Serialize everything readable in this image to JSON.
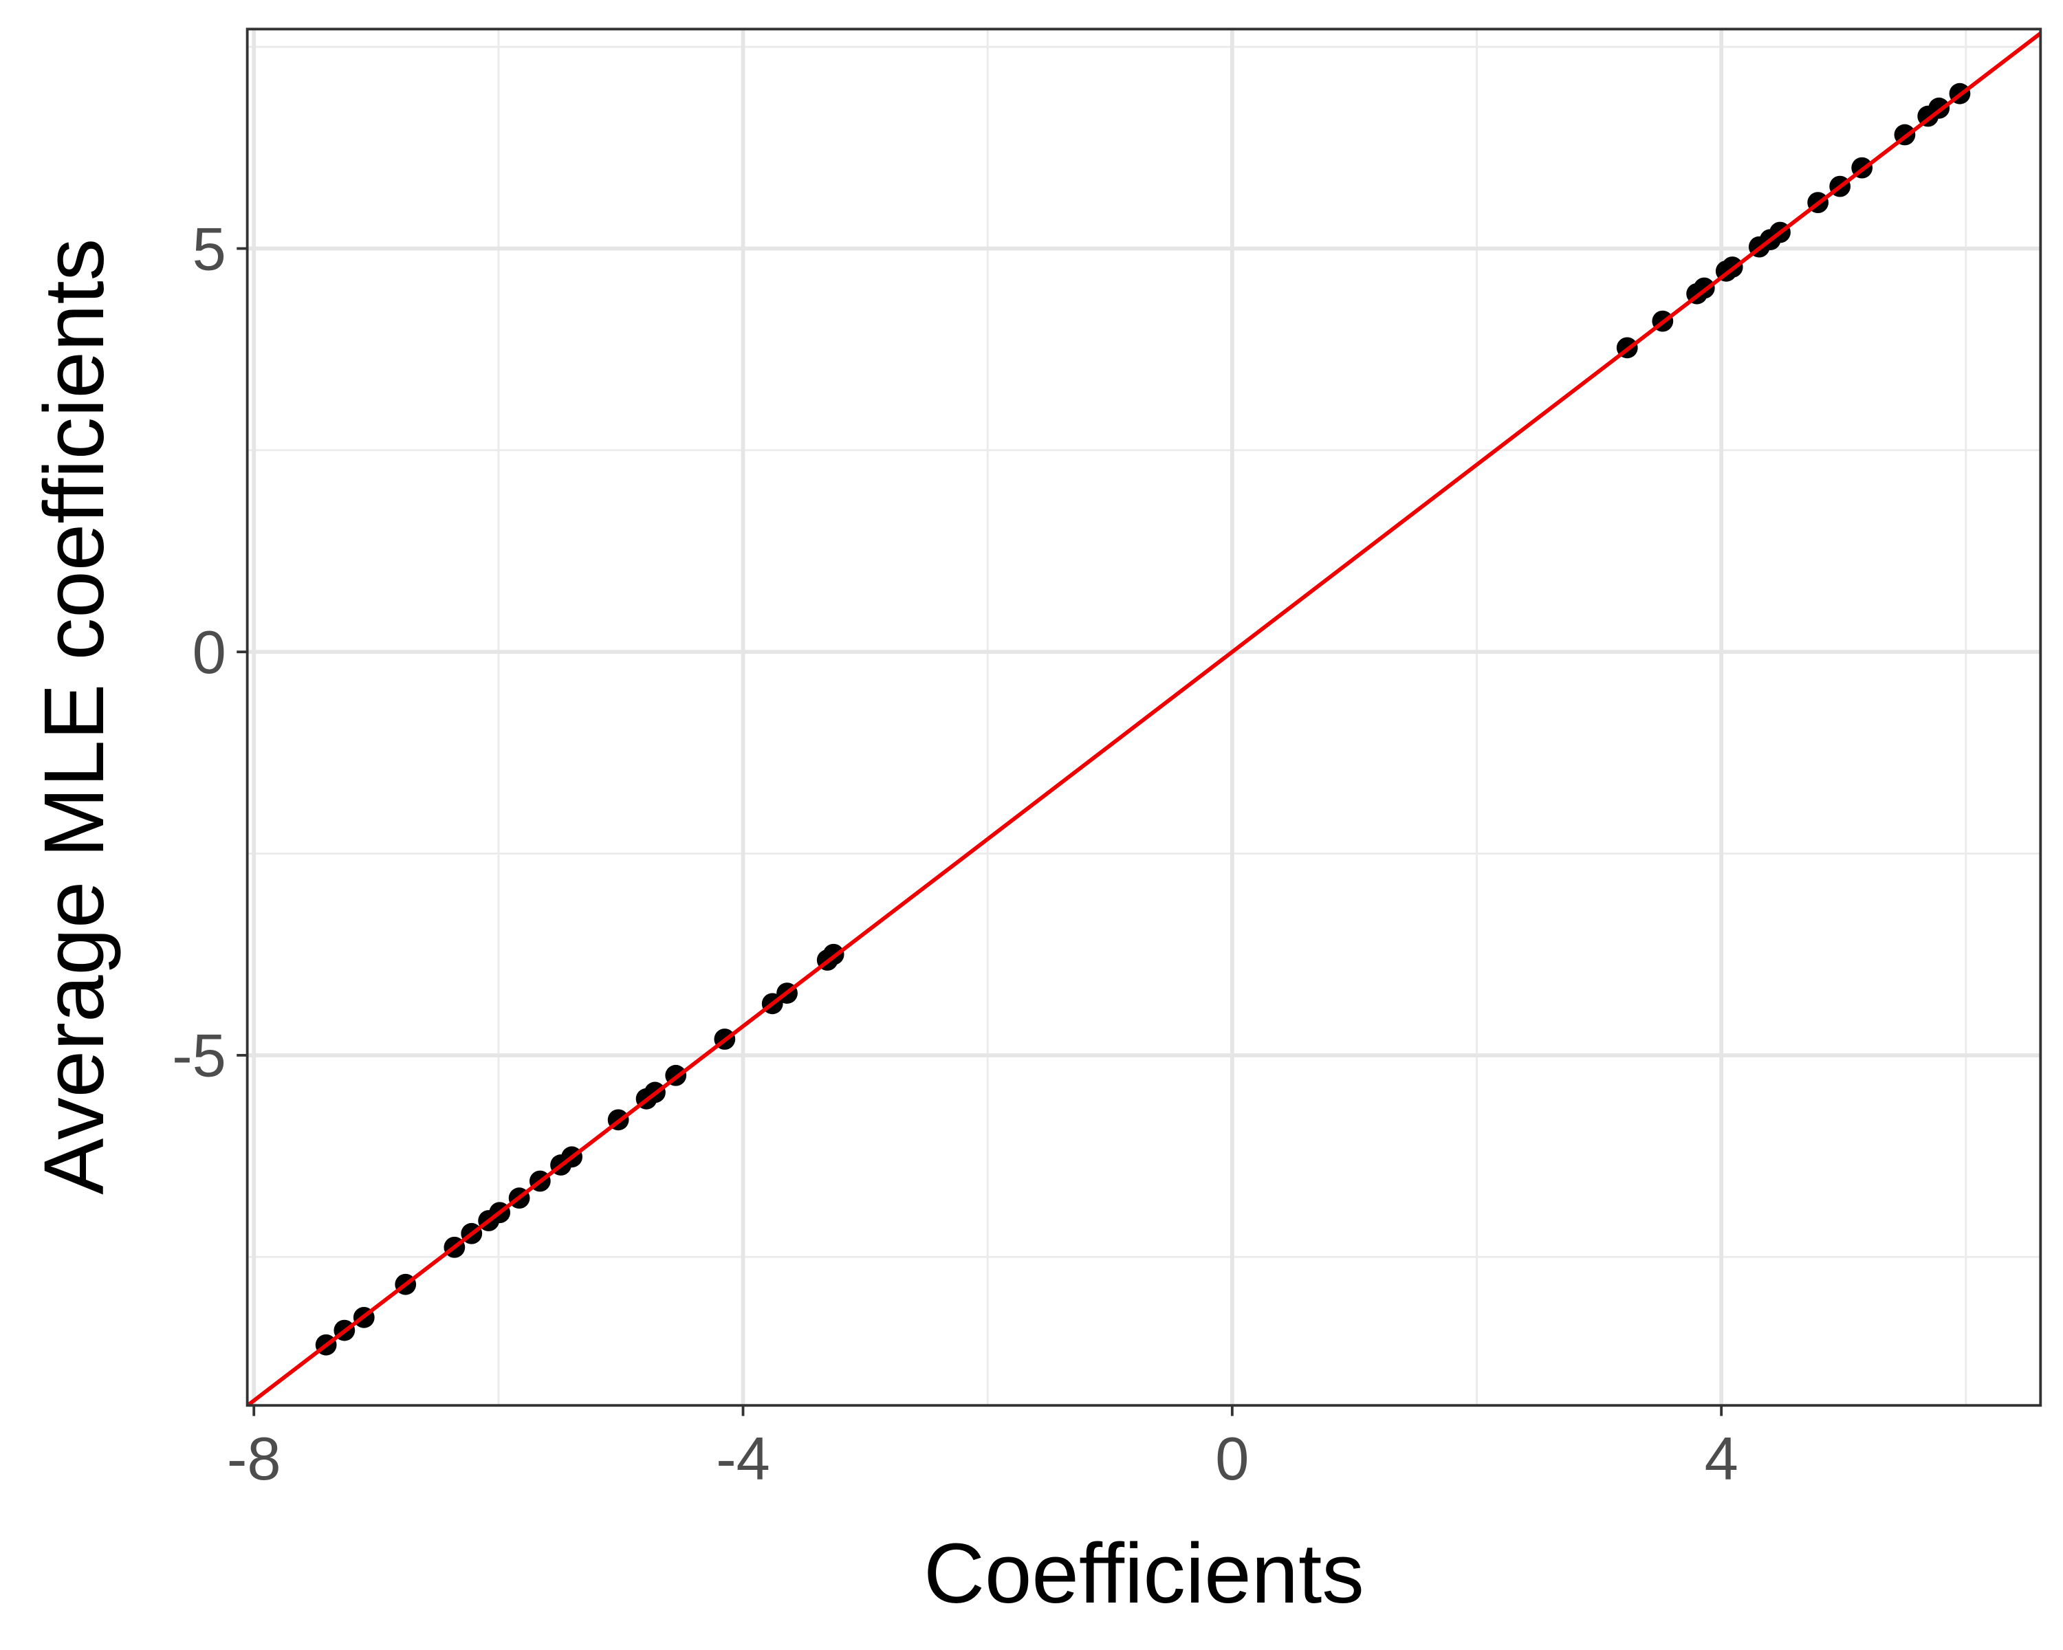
{
  "chart_data": {
    "type": "scatter",
    "x_label": "Coefficients",
    "y_label": "Average MLE coefficients",
    "x": [
      -7.41,
      -7.26,
      -7.1,
      -6.76,
      -6.36,
      -6.22,
      -6.08,
      -5.99,
      -5.83,
      -5.66,
      -5.49,
      -5.4,
      -5.02,
      -4.79,
      -4.72,
      -4.55,
      -4.15,
      -3.76,
      -3.64,
      -3.31,
      -3.26,
      3.23,
      3.52,
      3.8,
      3.86,
      4.04,
      4.09,
      4.31,
      4.4,
      4.48,
      4.79,
      4.97,
      5.15,
      5.5,
      5.69,
      5.78,
      5.95
    ],
    "values": [
      -8.59,
      -8.41,
      -8.25,
      -7.84,
      -7.38,
      -7.21,
      -7.05,
      -6.95,
      -6.77,
      -6.56,
      -6.36,
      -6.26,
      -5.8,
      -5.54,
      -5.46,
      -5.25,
      -4.8,
      -4.36,
      -4.23,
      -3.82,
      -3.75,
      3.77,
      4.1,
      4.44,
      4.51,
      4.72,
      4.77,
      5.02,
      5.11,
      5.2,
      5.57,
      5.77,
      6.0,
      6.41,
      6.64,
      6.74,
      6.92
    ],
    "color": "#000000",
    "xlim": [
      -8.054,
      6.61
    ],
    "ylim": [
      -9.34,
      7.72
    ],
    "xticks": [
      -8,
      -4,
      0,
      4
    ],
    "yticks": [
      -5,
      0,
      5
    ],
    "x_minor_grid": [
      -6,
      -2,
      2,
      6
    ],
    "y_minor_grid": [
      -7.5,
      -2.5,
      2.5,
      7.5
    ],
    "grid": true,
    "reference_line": {
      "slope": 1.16,
      "intercept": 0,
      "color": "#ee0000"
    }
  }
}
